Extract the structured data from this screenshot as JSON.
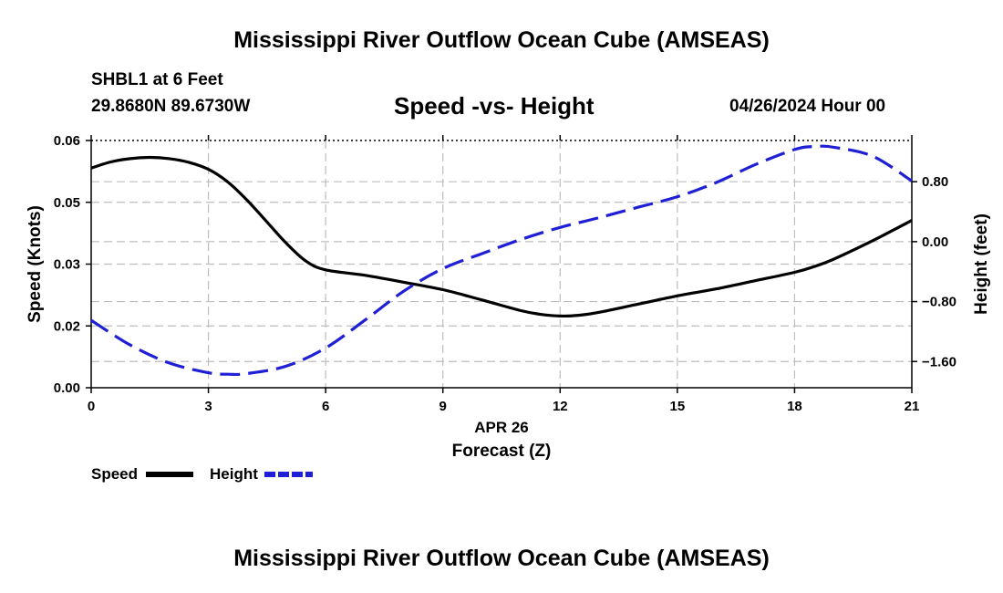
{
  "title": "Mississippi River Outflow Ocean Cube (AMSEAS)",
  "footer_title": "Mississippi River Outflow Ocean Cube (AMSEAS)",
  "station": {
    "name": "SHBL1 at 6 Feet",
    "coords": "29.8680N  89.6730W"
  },
  "subtitle": "Speed -vs- Height",
  "datetime": "04/26/2024 Hour 00",
  "colors": {
    "speed": "#000000",
    "height": "#1f1fd6",
    "grid": "#bdbdbd"
  },
  "legend": {
    "speed_label": "Speed",
    "height_label": "Height"
  },
  "chart_data": {
    "type": "line",
    "title": "Speed -vs- Height",
    "xlabel": "Forecast (Z)",
    "xlabel_date": "APR 26",
    "ylabel": "Speed (Knots)",
    "y2label": "Height (feet)",
    "xlim": [
      0,
      21
    ],
    "ylim": [
      0,
      0.06
    ],
    "y2lim": [
      -1.95,
      1.35
    ],
    "x_ticks": [
      0,
      3,
      6,
      9,
      12,
      15,
      18,
      21
    ],
    "x_tick_labels": [
      "0",
      "3",
      "6",
      "9",
      "12",
      "15",
      "18",
      "21"
    ],
    "y_ticks": [
      0,
      0.015,
      0.03,
      0.045,
      0.06
    ],
    "y_tick_labels": [
      "0.00",
      "0.02",
      "0.03",
      "0.05",
      "0.06"
    ],
    "y2_ticks": [
      -1.6,
      -0.8,
      0,
      0.8
    ],
    "y2_tick_labels": [
      "−1.60",
      "−0.80",
      "0.00",
      "0.80"
    ],
    "grid": true,
    "series": [
      {
        "name": "Speed",
        "axis": "left",
        "style": "solid",
        "x": [
          0,
          0.5,
          1,
          1.5,
          2,
          2.5,
          3,
          3.5,
          4,
          4.5,
          5,
          5.5,
          6,
          7,
          8,
          9,
          10,
          11,
          11.5,
          12,
          12.5,
          13,
          14,
          15,
          16,
          17,
          18,
          18.5,
          19,
          20,
          21
        ],
        "values": [
          0.0533,
          0.0548,
          0.0556,
          0.0559,
          0.0556,
          0.0547,
          0.053,
          0.0499,
          0.0454,
          0.0402,
          0.035,
          0.0307,
          0.0286,
          0.0273,
          0.0256,
          0.0238,
          0.0213,
          0.0187,
          0.0178,
          0.0174,
          0.0176,
          0.0183,
          0.0203,
          0.0223,
          0.024,
          0.026,
          0.028,
          0.0294,
          0.0312,
          0.0357,
          0.0406
        ]
      },
      {
        "name": "Height",
        "axis": "right",
        "style": "dashed",
        "x": [
          0,
          1,
          2,
          3,
          3.5,
          4,
          5,
          6,
          7,
          8,
          9,
          10,
          11,
          12,
          13,
          14,
          15,
          16,
          17,
          18,
          18.5,
          19,
          20,
          21
        ],
        "values": [
          -1.05,
          -1.38,
          -1.62,
          -1.75,
          -1.77,
          -1.76,
          -1.66,
          -1.42,
          -1.05,
          -0.66,
          -0.36,
          -0.16,
          0.03,
          0.19,
          0.32,
          0.46,
          0.6,
          0.79,
          1.03,
          1.23,
          1.27,
          1.26,
          1.14,
          0.81
        ]
      }
    ]
  }
}
